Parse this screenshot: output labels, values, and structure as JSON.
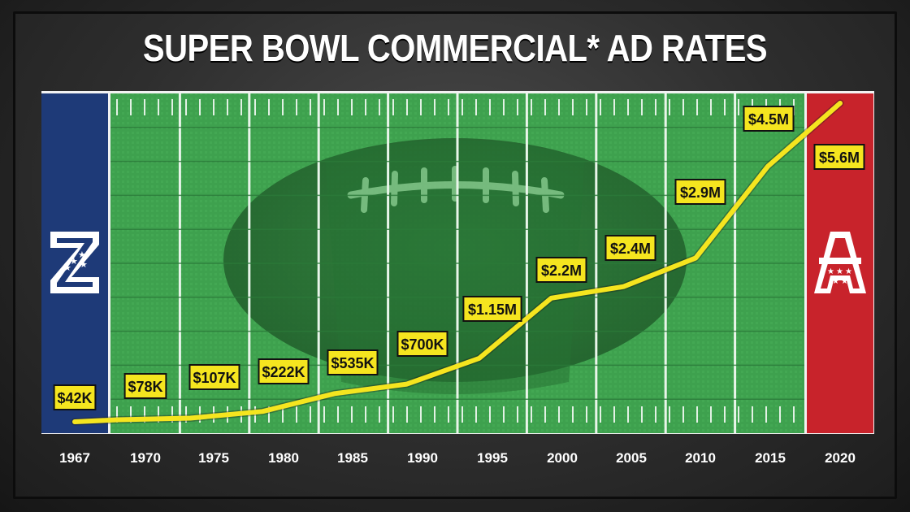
{
  "chart_data": {
    "type": "line",
    "title": "SUPER BOWL COMMERCIAL* AD RATES",
    "x": [
      "1967",
      "1970",
      "1975",
      "1980",
      "1985",
      "1990",
      "1995",
      "2000",
      "2005",
      "2010",
      "2015",
      "2020"
    ],
    "values": [
      42000,
      78000,
      107000,
      222000,
      535000,
      700000,
      1150000,
      2200000,
      2400000,
      2900000,
      4500000,
      5600000
    ],
    "data_labels": [
      "$42K",
      "$78K",
      "$107K",
      "$222K",
      "$535K",
      "$700K",
      "$1.15M",
      "$2.2M",
      "$2.4M",
      "$2.9M",
      "$4.5M",
      "$5.6M"
    ],
    "xlabel": "",
    "ylabel": "",
    "ylim": [
      0,
      5600000
    ],
    "grid": true,
    "legend": "none",
    "line_color": "#f5e51f",
    "label_bg": "#f5e51f"
  },
  "colors": {
    "field_green": "#3fa54f",
    "left_endzone": "#1e3a78",
    "right_endzone": "#c8232b",
    "line_yellow": "#f5e51f"
  },
  "icons": {
    "left_logo": "nfc-logo-icon",
    "right_logo": "afc-logo-icon",
    "background": "football-icon"
  }
}
